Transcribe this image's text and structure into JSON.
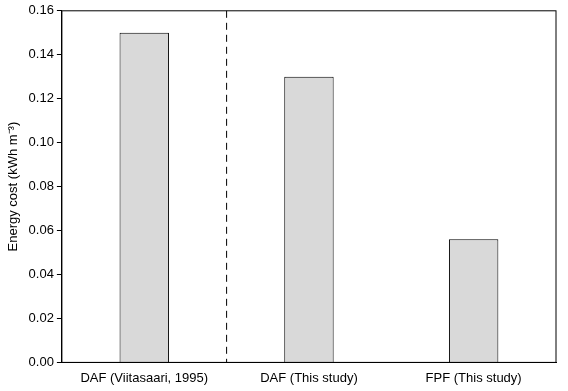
{
  "chart_data": {
    "type": "bar",
    "categories": [
      "DAF (Viitasaari, 1995)",
      "DAF (This study)",
      "FPF (This study)"
    ],
    "values": [
      0.15,
      0.13,
      0.056
    ],
    "color": "#d9d9d9",
    "y_label": "Energy cost (kWh m⁻³)",
    "ylim": [
      0,
      0.16
    ],
    "yticks": [
      {
        "value": 0,
        "label": "0.00"
      },
      {
        "value": 0.02,
        "label": "0.02"
      },
      {
        "value": 0.04,
        "label": "0.04"
      },
      {
        "value": 0.06,
        "label": "0.06"
      },
      {
        "value": 0.08,
        "label": "0.08"
      },
      {
        "value": 0.1,
        "label": "0.10"
      },
      {
        "value": 0.12,
        "label": "0.12"
      },
      {
        "value": 0.14,
        "label": "0.14"
      },
      {
        "value": 0.16,
        "label": "0.16"
      }
    ],
    "grid": false
  }
}
